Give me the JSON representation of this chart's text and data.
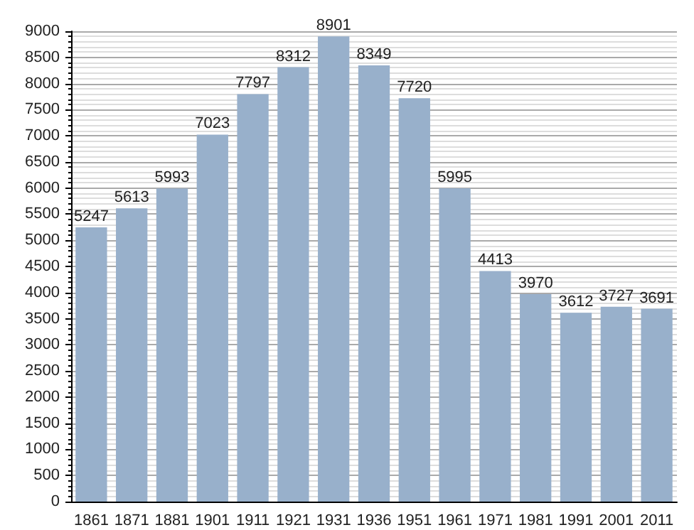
{
  "chart_data": {
    "type": "bar",
    "categories": [
      "1861",
      "1871",
      "1881",
      "1901",
      "1911",
      "1921",
      "1931",
      "1936",
      "1951",
      "1961",
      "1971",
      "1981",
      "1991",
      "2001",
      "2011"
    ],
    "values": [
      5247,
      5613,
      5993,
      7023,
      7797,
      8312,
      8901,
      8349,
      7720,
      5995,
      4413,
      3970,
      3612,
      3727,
      3691
    ],
    "color": "#98b0cb",
    "ylim": [
      0,
      9000
    ],
    "yticks": [
      0,
      500,
      1000,
      1500,
      2000,
      2500,
      3000,
      3500,
      4000,
      4500,
      5000,
      5500,
      6000,
      6500,
      7000,
      7500,
      8000,
      8500,
      9000
    ],
    "grid": "y",
    "data_labels": true
  }
}
